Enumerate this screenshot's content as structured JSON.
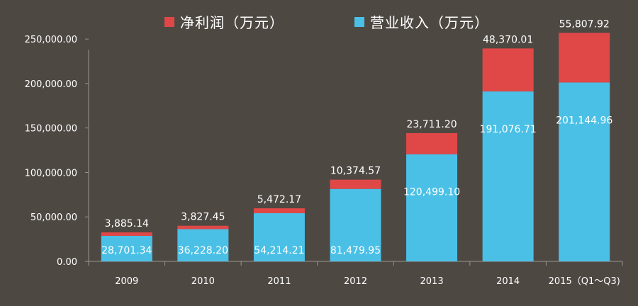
{
  "legend": {
    "net_profit": "净利润（万元）",
    "revenue": "营业收入（万元）"
  },
  "colors": {
    "net_profit": "#e04848",
    "revenue": "#4bc0e6",
    "background": "#4e4843",
    "axis": "#9a938c",
    "text": "#ffffff"
  },
  "chart_data": {
    "type": "bar",
    "stacked": true,
    "categories": [
      "2009",
      "2010",
      "2011",
      "2012",
      "2013",
      "2014",
      "2015（Q1～Q3)"
    ],
    "series": [
      {
        "name": "营业收入（万元）",
        "values": [
          28701.34,
          36228.2,
          54214.21,
          81479.95,
          120499.1,
          191076.71,
          201144.96
        ],
        "labels": [
          "28,701.34",
          "36,228.20",
          "54,214.21",
          "81,479.95",
          "120,499.10",
          "191,076.71",
          "201,144.96"
        ]
      },
      {
        "name": "净利润（万元）",
        "values": [
          3885.14,
          3827.45,
          5472.17,
          10374.57,
          23711.2,
          48370.01,
          55807.92
        ],
        "labels": [
          "3,885.14",
          "3,827.45",
          "5,472.17",
          "10,374.57",
          "23,711.20",
          "48,370.01",
          "55,807.92"
        ]
      }
    ],
    "yticks": [
      "0.00",
      "50,000.00",
      "100,000.00",
      "150,000.00",
      "200,000.00",
      "250,000.00"
    ],
    "ylim": [
      0,
      270000
    ],
    "title": "",
    "xlabel": "",
    "ylabel": "",
    "legend_position": "top-center",
    "grid": false
  }
}
